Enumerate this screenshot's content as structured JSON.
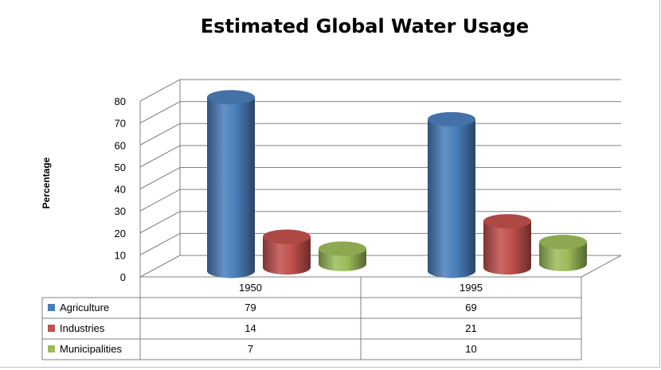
{
  "chart_data": {
    "type": "bar",
    "title": "Estimated Global Water Usage",
    "ylabel": "Percentage",
    "xlabel": "",
    "ylim": [
      0,
      80
    ],
    "yticks": [
      0,
      10,
      20,
      30,
      40,
      50,
      60,
      70,
      80
    ],
    "categories": [
      "1950",
      "1995"
    ],
    "series": [
      {
        "name": "Agriculture",
        "values": [
          79,
          69
        ],
        "color": "#4a7ebb"
      },
      {
        "name": "Industries",
        "values": [
          14,
          21
        ],
        "color": "#c0504d"
      },
      {
        "name": "Municipalities",
        "values": [
          7,
          10
        ],
        "color": "#9bbb59"
      }
    ],
    "bar_shape": "3d-cylinder",
    "grid": true,
    "data_table": true
  }
}
